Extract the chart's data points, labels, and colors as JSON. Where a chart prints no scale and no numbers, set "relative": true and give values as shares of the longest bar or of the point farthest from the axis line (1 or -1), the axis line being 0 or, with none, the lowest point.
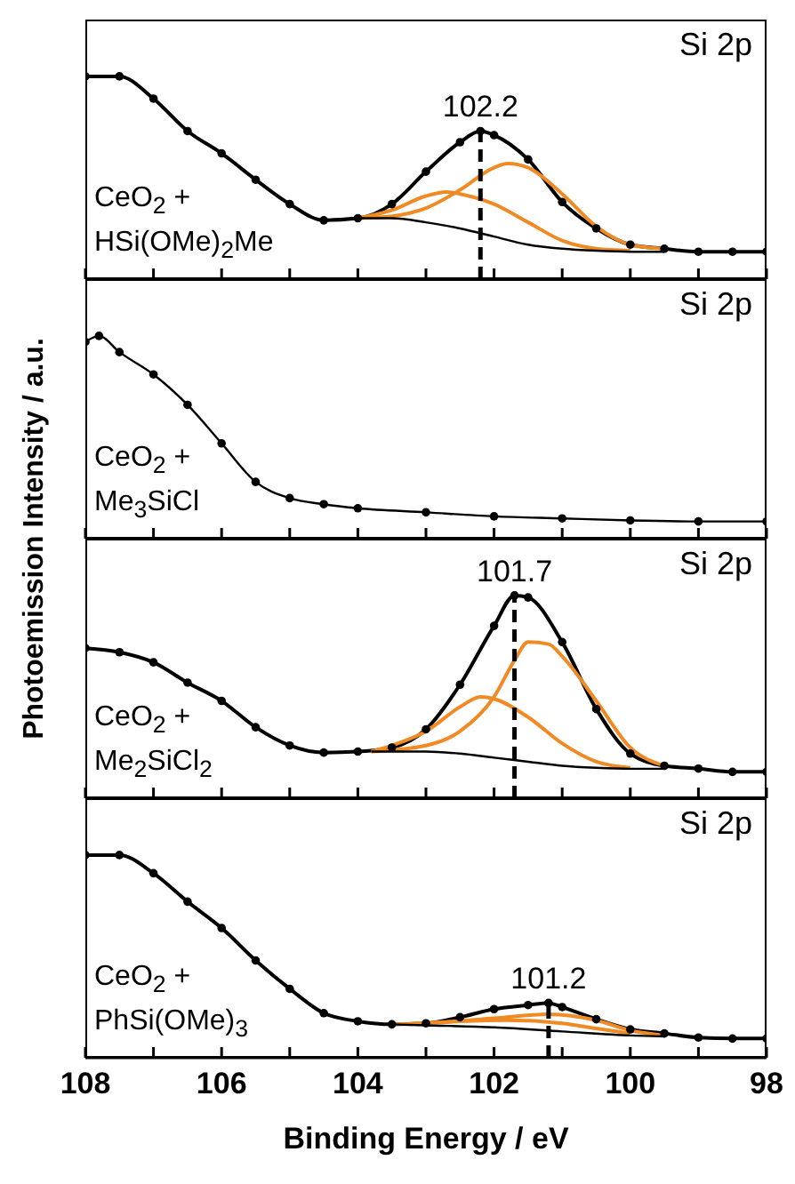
{
  "chart_data": [
    {
      "type": "line",
      "relative": true,
      "ylabel": "Photoemission Intensity / a.u.",
      "xlim": [
        108,
        98
      ],
      "xticks": [
        108,
        {
          "value": 107,
          "label": null
        },
        106,
        {
          "value": 105,
          "label": null
        },
        104,
        {
          "value": 103,
          "label": null
        },
        102,
        {
          "value": 101,
          "label": null
        },
        100,
        {
          "value": 99,
          "label": null
        },
        98
      ],
      "tick_labels": false,
      "annotations": [
        "Si 2p",
        "CeO$_{2}$ +\nHSi(OMe)$_{2}$Me"
      ],
      "ref_lines": [
        {
          "axis": "x",
          "value": 102.2,
          "label": "102.2",
          "line_style": "dashed",
          "color": "#000000"
        }
      ],
      "series": [
        {
          "type": "scatter",
          "marker": "circle",
          "color": "#000000",
          "x": [
            108,
            107.5,
            107,
            106.5,
            106,
            105.5,
            105,
            104.5,
            104,
            103.5,
            103,
            102.5,
            102.2,
            102,
            101.5,
            101,
            100.5,
            100,
            99.5,
            99,
            98.5,
            98
          ],
          "values": [
            1.0,
            1.0,
            0.89,
            0.73,
            0.62,
            0.49,
            0.37,
            0.29,
            0.3,
            0.37,
            0.53,
            0.675,
            0.73,
            0.71,
            0.59,
            0.38,
            0.25,
            0.17,
            0.15,
            0.135,
            0.135,
            0.135
          ]
        },
        {
          "color": "#000000",
          "x": [
            108,
            107.5,
            107,
            106.5,
            106,
            105.5,
            105,
            104.5,
            104,
            103.5,
            103,
            102.5,
            102.2,
            102,
            101.5,
            101,
            100.5,
            100,
            99.5,
            99,
            98.5,
            98
          ],
          "values": [
            1.0,
            1.0,
            0.89,
            0.73,
            0.62,
            0.49,
            0.37,
            0.29,
            0.3,
            0.37,
            0.53,
            0.675,
            0.73,
            0.71,
            0.59,
            0.38,
            0.25,
            0.17,
            0.15,
            0.135,
            0.135,
            0.135
          ]
        },
        {
          "color": "#f08a24",
          "x": [
            104,
            103.5,
            103,
            102.5,
            102,
            101.8,
            101.5,
            101,
            100.5,
            100,
            99.5
          ],
          "values": [
            0.3,
            0.31,
            0.35,
            0.44,
            0.55,
            0.57,
            0.55,
            0.42,
            0.26,
            0.17,
            0.15
          ]
        },
        {
          "color": "#f08a24",
          "x": [
            104,
            103.5,
            103,
            102.7,
            102.5,
            102,
            101.5,
            101,
            100.5,
            100
          ],
          "values": [
            0.3,
            0.34,
            0.41,
            0.43,
            0.42,
            0.37,
            0.28,
            0.19,
            0.15,
            0.14
          ]
        },
        {
          "color": "#000000",
          "x": [
            104.5,
            104,
            103.5,
            103,
            102.5,
            102,
            101.5,
            101,
            100.5,
            100,
            99.5
          ],
          "values": [
            0.29,
            0.3,
            0.3,
            0.28,
            0.25,
            0.21,
            0.17,
            0.15,
            0.14,
            0.135,
            0.135
          ]
        }
      ]
    },
    {
      "type": "line",
      "relative": true,
      "xlim": [
        108,
        98
      ],
      "xticks": [
        108,
        {
          "value": 107,
          "label": null
        },
        106,
        {
          "value": 105,
          "label": null
        },
        104,
        {
          "value": 103,
          "label": null
        },
        102,
        {
          "value": 101,
          "label": null
        },
        100,
        {
          "value": 99,
          "label": null
        },
        98
      ],
      "tick_labels": false,
      "annotations": [
        "Si 2p",
        "CeO$_{2}$ +\nMe$_{3}$SiCl"
      ],
      "series": [
        {
          "type": "scatter",
          "marker": "circle",
          "color": "#000000",
          "x": [
            108,
            107.8,
            107.5,
            107,
            106.5,
            106,
            105.5,
            105,
            104.5,
            104,
            103,
            102,
            101,
            100,
            99,
            98
          ],
          "values": [
            0.97,
            1.0,
            0.92,
            0.81,
            0.66,
            0.47,
            0.28,
            0.2,
            0.17,
            0.15,
            0.13,
            0.11,
            0.1,
            0.09,
            0.085,
            0.085
          ]
        },
        {
          "color": "#000000",
          "x": [
            108,
            107.8,
            107.5,
            107,
            106.5,
            106,
            105.5,
            105,
            104.5,
            104,
            103,
            102,
            101,
            100,
            99,
            98
          ],
          "values": [
            0.97,
            1.0,
            0.92,
            0.81,
            0.66,
            0.47,
            0.28,
            0.2,
            0.17,
            0.15,
            0.13,
            0.11,
            0.1,
            0.09,
            0.085,
            0.085
          ]
        }
      ]
    },
    {
      "type": "line",
      "relative": true,
      "xlim": [
        108,
        98
      ],
      "xticks": [
        108,
        {
          "value": 107,
          "label": null
        },
        106,
        {
          "value": 105,
          "label": null
        },
        104,
        {
          "value": 103,
          "label": null
        },
        102,
        {
          "value": 101,
          "label": null
        },
        100,
        {
          "value": 99,
          "label": null
        },
        98
      ],
      "tick_labels": false,
      "annotations": [
        "Si 2p",
        "CeO$_{2}$ +\nMe$_{2}$SiCl$_{2}$"
      ],
      "ref_lines": [
        {
          "axis": "x",
          "value": 101.7,
          "label": "101.7",
          "line_style": "dashed",
          "color": "#000000"
        }
      ],
      "series": [
        {
          "type": "scatter",
          "marker": "circle",
          "color": "#000000",
          "x": [
            108,
            107.5,
            107,
            106.5,
            106,
            105.5,
            105,
            104.5,
            104,
            103.5,
            103,
            102.5,
            102,
            101.7,
            101.5,
            101,
            100.5,
            100,
            99.5,
            99,
            98.5,
            98
          ],
          "values": [
            0.74,
            0.72,
            0.67,
            0.57,
            0.48,
            0.35,
            0.26,
            0.225,
            0.23,
            0.25,
            0.34,
            0.56,
            0.85,
            1.0,
            0.99,
            0.77,
            0.44,
            0.22,
            0.16,
            0.146,
            0.13,
            0.13
          ]
        },
        {
          "color": "#000000",
          "x": [
            108,
            107.5,
            107,
            106.5,
            106,
            105.5,
            105,
            104.5,
            104,
            103.5,
            103,
            102.5,
            102,
            101.7,
            101.5,
            101,
            100.5,
            100,
            99.5,
            99,
            98.5,
            98
          ],
          "values": [
            0.74,
            0.72,
            0.67,
            0.57,
            0.48,
            0.35,
            0.26,
            0.225,
            0.23,
            0.25,
            0.34,
            0.56,
            0.85,
            1.0,
            0.99,
            0.77,
            0.44,
            0.22,
            0.16,
            0.146,
            0.13,
            0.13
          ]
        },
        {
          "color": "#f08a24",
          "x": [
            103.8,
            103,
            102.5,
            102,
            101.7,
            101.5,
            101.2,
            101,
            100.5,
            100,
            99.5
          ],
          "values": [
            0.23,
            0.26,
            0.33,
            0.5,
            0.68,
            0.77,
            0.76,
            0.7,
            0.48,
            0.25,
            0.16
          ]
        },
        {
          "color": "#f08a24",
          "x": [
            103.8,
            103.5,
            103,
            102.5,
            102.2,
            102,
            101.5,
            101,
            100.5,
            100
          ],
          "values": [
            0.23,
            0.26,
            0.33,
            0.45,
            0.5,
            0.49,
            0.4,
            0.27,
            0.18,
            0.15
          ]
        },
        {
          "color": "#000000",
          "x": [
            103.8,
            103,
            102.5,
            102,
            101.5,
            101,
            100.5,
            100,
            99.5
          ],
          "values": [
            0.23,
            0.23,
            0.22,
            0.2,
            0.18,
            0.16,
            0.15,
            0.145,
            0.145
          ]
        }
      ]
    },
    {
      "type": "line",
      "relative": true,
      "xlabel": "Binding Energy / eV",
      "xlim": [
        108,
        98
      ],
      "xticks": [
        108,
        {
          "value": 107,
          "label": null
        },
        106,
        {
          "value": 105,
          "label": null
        },
        104,
        {
          "value": 103,
          "label": null
        },
        102,
        {
          "value": 101,
          "label": null
        },
        100,
        {
          "value": 99,
          "label": null
        },
        98
      ],
      "tick_labels": "x",
      "annotations": [
        "Si 2p",
        "CeO$_{2}$ +\nPhSi(OMe)$_{3}$"
      ],
      "ref_lines": [
        {
          "axis": "x",
          "value": 101.2,
          "label": "101.2",
          "line_style": "dashed",
          "color": "#000000"
        }
      ],
      "series": [
        {
          "type": "scatter",
          "marker": "circle",
          "color": "#000000",
          "x": [
            108,
            107.5,
            107,
            106.5,
            106,
            105.5,
            105,
            104.5,
            104,
            103.5,
            103,
            102.5,
            102,
            101.5,
            101.2,
            101,
            100.5,
            100,
            99.5,
            99,
            98.5,
            98
          ],
          "values": [
            1.0,
            1.0,
            0.91,
            0.77,
            0.64,
            0.48,
            0.34,
            0.22,
            0.18,
            0.165,
            0.17,
            0.2,
            0.24,
            0.26,
            0.27,
            0.25,
            0.19,
            0.14,
            0.12,
            0.1,
            0.095,
            0.095
          ]
        },
        {
          "color": "#000000",
          "x": [
            108,
            107.5,
            107,
            106.5,
            106,
            105.5,
            105,
            104.5,
            104,
            103.5,
            103,
            102.5,
            102,
            101.5,
            101.2,
            101,
            100.5,
            100,
            99.5,
            99,
            98.5,
            98
          ],
          "values": [
            1.0,
            1.0,
            0.91,
            0.77,
            0.64,
            0.48,
            0.34,
            0.22,
            0.18,
            0.165,
            0.17,
            0.2,
            0.24,
            0.26,
            0.27,
            0.25,
            0.19,
            0.14,
            0.12,
            0.1,
            0.095,
            0.095
          ]
        },
        {
          "color": "#f08a24",
          "x": [
            103.5,
            103,
            102,
            101.2,
            100.5,
            100,
            99.5
          ],
          "values": [
            0.165,
            0.17,
            0.195,
            0.215,
            0.185,
            0.135,
            0.11
          ]
        },
        {
          "color": "#f08a24",
          "x": [
            103.2,
            102.5,
            101.8,
            101,
            100.5,
            100
          ],
          "values": [
            0.168,
            0.18,
            0.185,
            0.17,
            0.145,
            0.12
          ]
        },
        {
          "color": "#000000",
          "x": [
            103.5,
            103,
            102,
            101,
            100,
            99.5
          ],
          "values": [
            0.165,
            0.16,
            0.15,
            0.13,
            0.11,
            0.105
          ]
        }
      ]
    }
  ]
}
